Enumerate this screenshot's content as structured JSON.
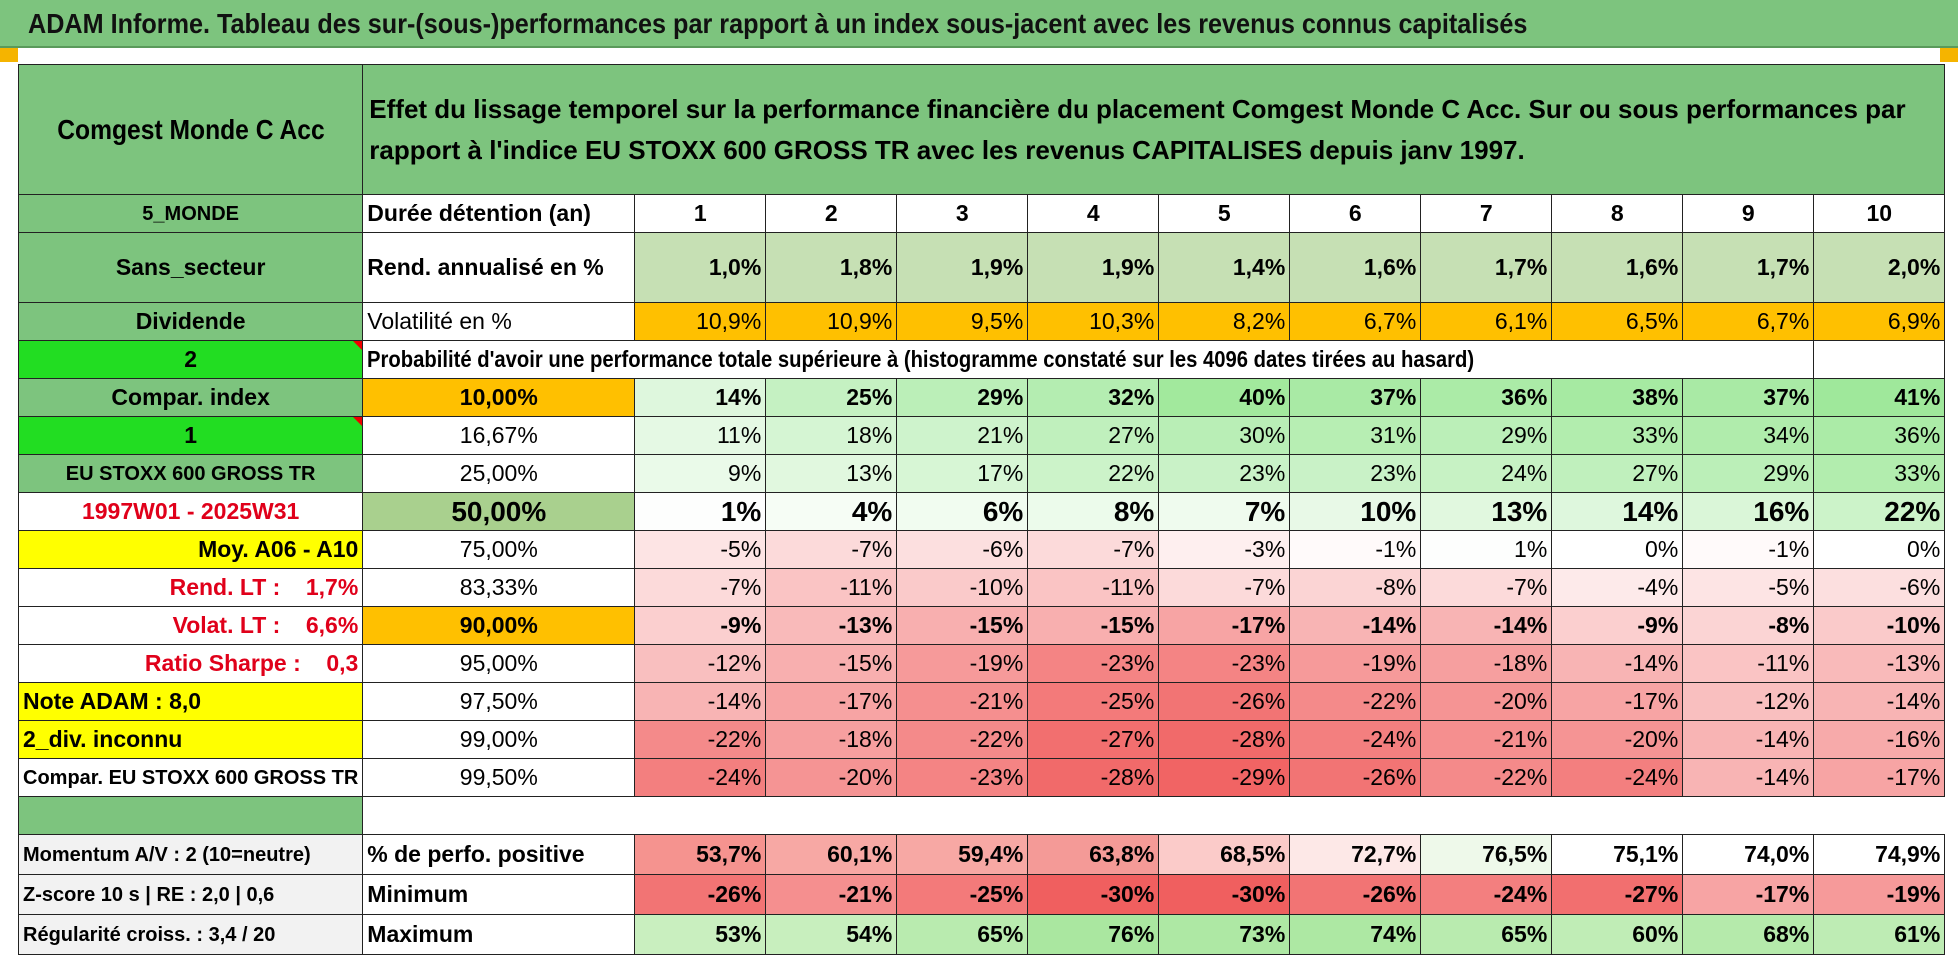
{
  "title": "ADAM Informe. Tableau des sur-(sous-)performances par rapport à un index sous-jacent avec les revenus connus capitalisés",
  "fund_name": "Comgest Monde C Acc",
  "header_text": "Effet du lissage temporel sur la performance financière du placement Comgest Monde C Acc. Sur ou sous performances par rapport à l'indice EU STOXX 600 GROSS TR avec les revenus CAPITALISES depuis janv 1997.",
  "side": {
    "category": "5_MONDE",
    "sector": "Sans_secteur",
    "dividend": "Dividende",
    "green2": "2",
    "compar_index": "Compar. index",
    "green1": "1",
    "index_name": "EU STOXX 600 GROSS TR",
    "period": "1997W01 - 2025W31",
    "moy": "Moy. A06 - A10",
    "rend_lt": "Rend. LT :    1,7%",
    "volat_lt": "Volat. LT :    6,6%",
    "sharpe": "Ratio Sharpe :    0,3",
    "note": "Note ADAM : 8,0",
    "div": "2_div. inconnu",
    "compar": "Compar. EU STOXX 600 GROSS TR"
  },
  "labels": {
    "duree": "Durée détention (an)",
    "rend": "Rend. annualisé en %",
    "vol": "Volatilité en %",
    "prob": "Probabilité d'avoir une performance totale supérieure à (histogramme constaté sur les 4096 dates tirées au hasard)"
  },
  "years": [
    "1",
    "2",
    "3",
    "4",
    "5",
    "6",
    "7",
    "8",
    "9",
    "10"
  ],
  "rend": [
    "1,0%",
    "1,8%",
    "1,9%",
    "1,9%",
    "1,4%",
    "1,6%",
    "1,7%",
    "1,6%",
    "1,7%",
    "2,0%"
  ],
  "vol": [
    "10,9%",
    "10,9%",
    "9,5%",
    "10,3%",
    "8,2%",
    "6,7%",
    "6,1%",
    "6,5%",
    "6,7%",
    "6,9%"
  ],
  "prob_rows": [
    {
      "thr": "10,00%",
      "vals": [
        "14%",
        "25%",
        "29%",
        "32%",
        "40%",
        "37%",
        "36%",
        "38%",
        "37%",
        "41%"
      ]
    },
    {
      "thr": "16,67%",
      "vals": [
        "11%",
        "18%",
        "21%",
        "27%",
        "30%",
        "31%",
        "29%",
        "33%",
        "34%",
        "36%"
      ]
    },
    {
      "thr": "25,00%",
      "vals": [
        "9%",
        "13%",
        "17%",
        "22%",
        "23%",
        "23%",
        "24%",
        "27%",
        "29%",
        "33%"
      ]
    },
    {
      "thr": "50,00%",
      "vals": [
        "1%",
        "4%",
        "6%",
        "8%",
        "7%",
        "10%",
        "13%",
        "14%",
        "16%",
        "22%"
      ]
    },
    {
      "thr": "75,00%",
      "vals": [
        "-5%",
        "-7%",
        "-6%",
        "-7%",
        "-3%",
        "-1%",
        "1%",
        "0%",
        "-1%",
        "0%"
      ]
    },
    {
      "thr": "83,33%",
      "vals": [
        "-7%",
        "-11%",
        "-10%",
        "-11%",
        "-7%",
        "-8%",
        "-7%",
        "-4%",
        "-5%",
        "-6%"
      ]
    },
    {
      "thr": "90,00%",
      "vals": [
        "-9%",
        "-13%",
        "-15%",
        "-15%",
        "-17%",
        "-14%",
        "-14%",
        "-9%",
        "-8%",
        "-10%"
      ]
    },
    {
      "thr": "95,00%",
      "vals": [
        "-12%",
        "-15%",
        "-19%",
        "-23%",
        "-23%",
        "-19%",
        "-18%",
        "-14%",
        "-11%",
        "-13%"
      ]
    },
    {
      "thr": "97,50%",
      "vals": [
        "-14%",
        "-17%",
        "-21%",
        "-25%",
        "-26%",
        "-22%",
        "-20%",
        "-17%",
        "-12%",
        "-14%"
      ]
    },
    {
      "thr": "99,00%",
      "vals": [
        "-22%",
        "-18%",
        "-22%",
        "-27%",
        "-28%",
        "-24%",
        "-21%",
        "-20%",
        "-14%",
        "-16%"
      ]
    },
    {
      "thr": "99,50%",
      "vals": [
        "-24%",
        "-20%",
        "-23%",
        "-28%",
        "-29%",
        "-26%",
        "-22%",
        "-24%",
        "-14%",
        "-17%"
      ]
    }
  ],
  "bottom": [
    {
      "side": "Momentum A/V : 2 (10=neutre)",
      "label": "% de perfo. positive",
      "vals": [
        "53,7%",
        "60,1%",
        "59,4%",
        "63,8%",
        "68,5%",
        "72,7%",
        "76,5%",
        "75,1%",
        "74,0%",
        "74,9%"
      ]
    },
    {
      "side": "Z-score 10 s | RE : 2,0 | 0,6",
      "label": "Minimum",
      "vals": [
        "-26%",
        "-21%",
        "-25%",
        "-30%",
        "-30%",
        "-26%",
        "-24%",
        "-27%",
        "-17%",
        "-19%"
      ]
    },
    {
      "side": "Régularité croiss. : 3,4 / 20",
      "label": "Maximum",
      "vals": [
        "53%",
        "54%",
        "65%",
        "76%",
        "73%",
        "74%",
        "65%",
        "60%",
        "68%",
        "61%"
      ]
    }
  ],
  "colors": {
    "header_green": "#7dc47e",
    "bright_green": "#22dd22",
    "yellow": "#ffff00",
    "orange": "#ffc000",
    "red_text": "#e0001a"
  }
}
